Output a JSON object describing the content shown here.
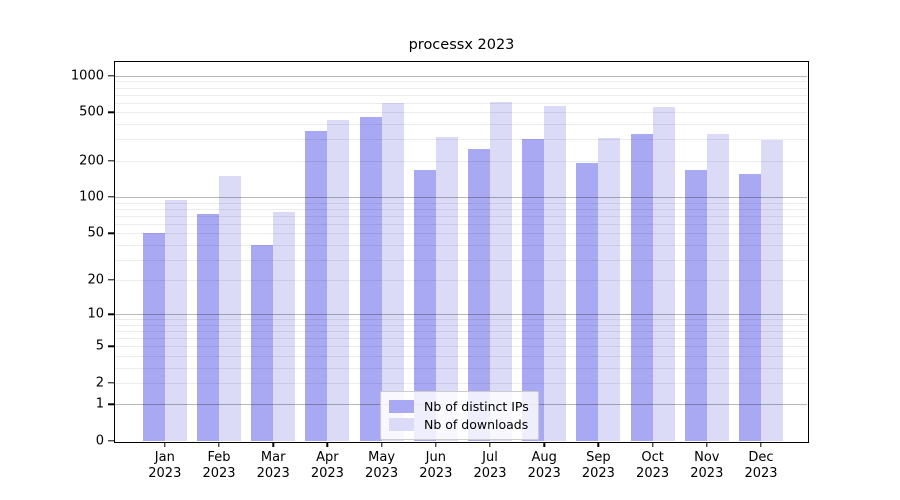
{
  "chart_data": {
    "type": "bar",
    "title": "processx 2023",
    "x": [
      {
        "month": "Jan",
        "year": "2023"
      },
      {
        "month": "Feb",
        "year": "2023"
      },
      {
        "month": "Mar",
        "year": "2023"
      },
      {
        "month": "Apr",
        "year": "2023"
      },
      {
        "month": "May",
        "year": "2023"
      },
      {
        "month": "Jun",
        "year": "2023"
      },
      {
        "month": "Jul",
        "year": "2023"
      },
      {
        "month": "Aug",
        "year": "2023"
      },
      {
        "month": "Sep",
        "year": "2023"
      },
      {
        "month": "Oct",
        "year": "2023"
      },
      {
        "month": "Nov",
        "year": "2023"
      },
      {
        "month": "Dec",
        "year": "2023"
      }
    ],
    "series": [
      {
        "name": "Nb of distinct IPs",
        "color": "#a9a9f3",
        "values": [
          50,
          72,
          40,
          355,
          460,
          167,
          248,
          305,
          190,
          333,
          168,
          155
        ]
      },
      {
        "name": "Nb of downloads",
        "color": "#dbdbf8",
        "values": [
          95,
          150,
          75,
          435,
          600,
          317,
          615,
          570,
          307,
          560,
          332,
          295
        ]
      }
    ],
    "y_scale": "log1p",
    "ylim": [
      0,
      1300
    ],
    "y_ticks": [
      0,
      1,
      2,
      5,
      10,
      20,
      50,
      100,
      200,
      500,
      1000
    ],
    "grid": {
      "major": [
        1,
        10,
        100,
        1000
      ],
      "minor": [
        2,
        3,
        4,
        5,
        6,
        7,
        8,
        9,
        20,
        30,
        40,
        50,
        60,
        70,
        80,
        90,
        200,
        300,
        400,
        500,
        600,
        700,
        800,
        900
      ]
    },
    "legend_position": "lower center inside plot"
  },
  "colors": {
    "minor_grid": "rgba(0,0,0,0.075)",
    "major_grid": "rgba(0,0,0,0.28)",
    "axis": "#000000",
    "background": "#ffffff",
    "legend_border": "#cccccc"
  }
}
